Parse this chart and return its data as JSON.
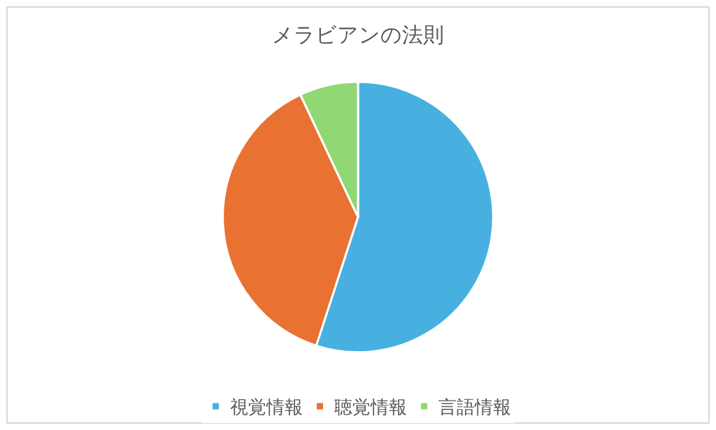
{
  "chart_data": {
    "type": "pie",
    "title": "メラビアンの法則",
    "categories": [
      "視覚情報",
      "聴覚情報",
      "言語情報"
    ],
    "values": [
      55,
      38,
      7
    ],
    "colors": [
      "#47b0e0",
      "#e97132",
      "#8fd873"
    ],
    "legend": "bottom"
  }
}
